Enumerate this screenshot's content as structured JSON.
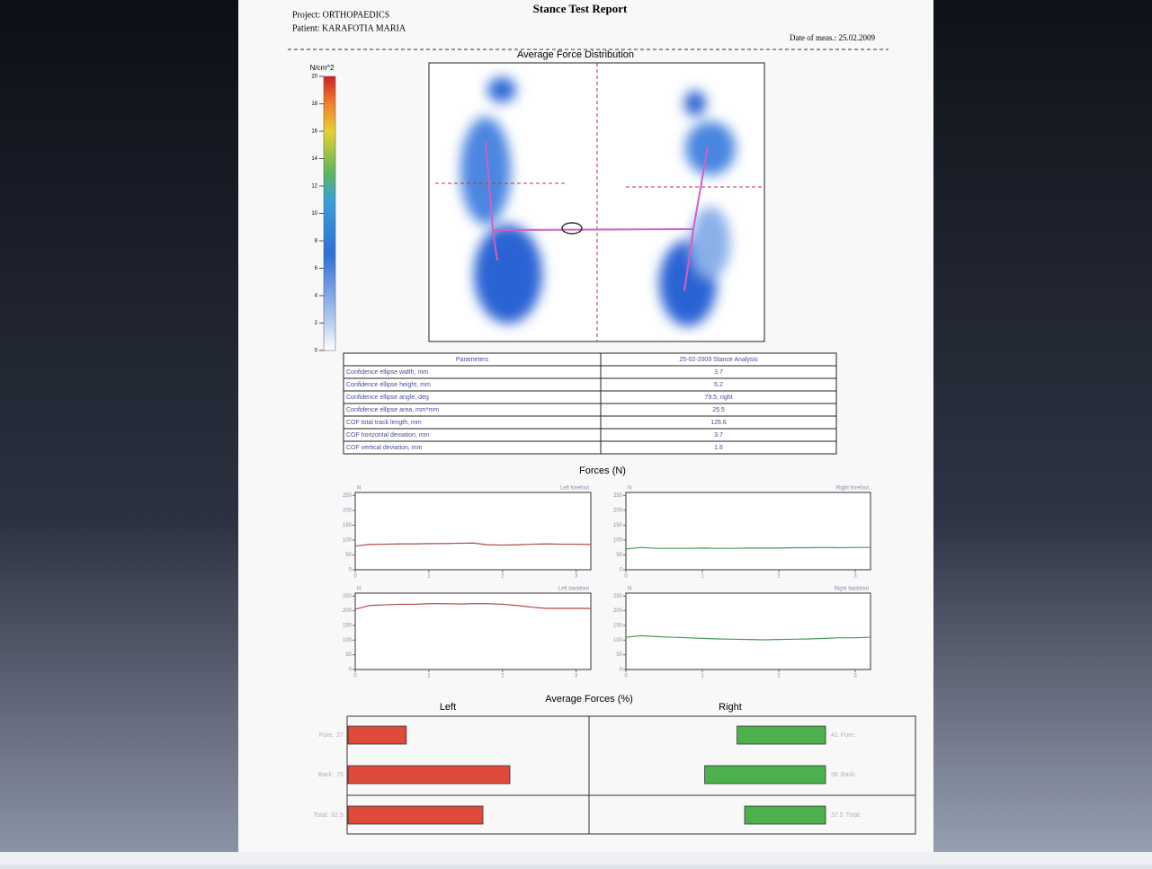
{
  "header": {
    "title": "Stance Test Report",
    "project": "Project: ORTHOPAEDICS",
    "patient": "Patient: KARAFOTIA MARIA",
    "date": "Date of meas.: 25.02.2009"
  },
  "heatmap": {
    "title": "Average Force Distribution",
    "unit": "N/cm^2",
    "ticks": [
      0,
      2,
      4,
      6,
      8,
      10,
      12,
      14,
      16,
      18,
      20
    ]
  },
  "table": {
    "header": [
      "Parameters",
      "25-02-2009 Stance Analysis"
    ],
    "rows": [
      [
        "Confidence ellipse width, mm",
        "3.7"
      ],
      [
        "Confidence ellipse height, mm",
        "5.2"
      ],
      [
        "Confidence ellipse angle, deg",
        "79.5, right"
      ],
      [
        "Confidence ellipse area, mm*mm",
        "25.5"
      ],
      [
        "COF total track length, mm",
        "126.6"
      ],
      [
        "COF horizontal deviation, mm",
        "3.7"
      ],
      [
        "COF vertical deviation, mm",
        "1.6"
      ]
    ]
  },
  "forces": {
    "title": "Forces (N)",
    "charts": [
      {
        "type": "line",
        "title": "Left forefoot",
        "y_label": "N",
        "color": "#b04848",
        "x": [
          0,
          0.2,
          0.4,
          0.6,
          0.8,
          1,
          1.2,
          1.4,
          1.6,
          1.8,
          2,
          2.2,
          2.4,
          2.6,
          2.8,
          3,
          3.2
        ],
        "values": [
          80,
          85,
          86,
          87,
          87,
          88,
          88,
          89,
          90,
          84,
          83,
          84,
          86,
          87,
          86,
          86,
          85
        ],
        "xlim": [
          0,
          3.2
        ],
        "ylim": [
          0,
          260
        ],
        "xticks": [
          0,
          1,
          2,
          3
        ],
        "yticks": [
          0,
          50,
          100,
          150,
          200,
          250
        ]
      },
      {
        "type": "line",
        "title": "Right forefoot",
        "y_label": "N",
        "color": "#4a9a5a",
        "x": [
          0,
          0.2,
          0.4,
          0.6,
          0.8,
          1,
          1.2,
          1.4,
          1.6,
          1.8,
          2,
          2.2,
          2.4,
          2.6,
          2.8,
          3,
          3.2
        ],
        "values": [
          70,
          75,
          72,
          72,
          72,
          73,
          72,
          72,
          73,
          73,
          73,
          74,
          74,
          75,
          74,
          75,
          75
        ],
        "xlim": [
          0,
          3.2
        ],
        "ylim": [
          0,
          260
        ],
        "xticks": [
          0,
          1,
          2,
          3
        ],
        "yticks": [
          0,
          50,
          100,
          150,
          200,
          250
        ]
      },
      {
        "type": "line",
        "title": "Left backfoot",
        "y_label": "N",
        "color": "#b04848",
        "x": [
          0,
          0.2,
          0.4,
          0.6,
          0.8,
          1,
          1.2,
          1.4,
          1.6,
          1.8,
          2,
          2.2,
          2.4,
          2.6,
          2.8,
          3,
          3.2
        ],
        "values": [
          205,
          218,
          220,
          222,
          222,
          224,
          224,
          223,
          224,
          224,
          222,
          218,
          212,
          208,
          208,
          208,
          208
        ],
        "xlim": [
          0,
          3.2
        ],
        "ylim": [
          0,
          260
        ],
        "xticks": [
          0,
          1,
          2,
          3
        ],
        "yticks": [
          0,
          50,
          100,
          150,
          200,
          250
        ]
      },
      {
        "type": "line",
        "title": "Right backfoot",
        "y_label": "N",
        "color": "#4a9a5a",
        "x": [
          0,
          0.2,
          0.4,
          0.6,
          0.8,
          1,
          1.2,
          1.4,
          1.6,
          1.8,
          2,
          2.2,
          2.4,
          2.6,
          2.8,
          3,
          3.2
        ],
        "values": [
          110,
          115,
          112,
          110,
          108,
          106,
          104,
          103,
          102,
          101,
          102,
          103,
          104,
          106,
          108,
          108,
          110
        ],
        "xlim": [
          0,
          3.2
        ],
        "ylim": [
          0,
          260
        ],
        "xticks": [
          0,
          1,
          2,
          3
        ],
        "yticks": [
          0,
          50,
          100,
          150,
          200,
          250
        ]
      }
    ]
  },
  "average_forces": {
    "type": "bar",
    "title": "Average Forces (%)",
    "categories": [
      "Fore:",
      "Back:",
      "Total:"
    ],
    "series": [
      {
        "name": "Left",
        "color": "#e04a3a",
        "values": [
          27,
          75,
          62.5
        ]
      },
      {
        "name": "Right",
        "color": "#4cb04c",
        "values": [
          41,
          56,
          37.5
        ]
      }
    ]
  }
}
